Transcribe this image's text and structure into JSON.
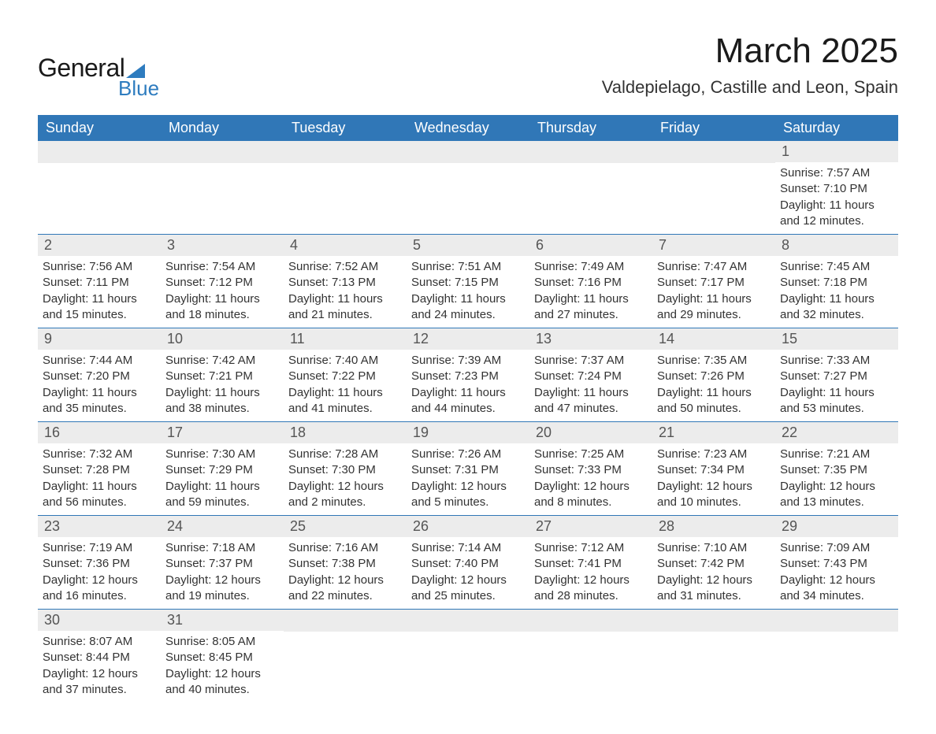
{
  "logo": {
    "text1": "General",
    "text2": "Blue"
  },
  "title": "March 2025",
  "location": "Valdepielago, Castille and Leon, Spain",
  "colors": {
    "header_bg": "#3077b7",
    "header_text": "#ffffff",
    "daynum_bg": "#ececec",
    "cell_border": "#3077b7",
    "logo_accent": "#2e7cbf",
    "body_text": "#333333"
  },
  "dayHeaders": [
    "Sunday",
    "Monday",
    "Tuesday",
    "Wednesday",
    "Thursday",
    "Friday",
    "Saturday"
  ],
  "weeks": [
    [
      null,
      null,
      null,
      null,
      null,
      null,
      {
        "n": "1",
        "sr": "Sunrise: 7:57 AM",
        "ss": "Sunset: 7:10 PM",
        "d1": "Daylight: 11 hours",
        "d2": "and 12 minutes."
      }
    ],
    [
      {
        "n": "2",
        "sr": "Sunrise: 7:56 AM",
        "ss": "Sunset: 7:11 PM",
        "d1": "Daylight: 11 hours",
        "d2": "and 15 minutes."
      },
      {
        "n": "3",
        "sr": "Sunrise: 7:54 AM",
        "ss": "Sunset: 7:12 PM",
        "d1": "Daylight: 11 hours",
        "d2": "and 18 minutes."
      },
      {
        "n": "4",
        "sr": "Sunrise: 7:52 AM",
        "ss": "Sunset: 7:13 PM",
        "d1": "Daylight: 11 hours",
        "d2": "and 21 minutes."
      },
      {
        "n": "5",
        "sr": "Sunrise: 7:51 AM",
        "ss": "Sunset: 7:15 PM",
        "d1": "Daylight: 11 hours",
        "d2": "and 24 minutes."
      },
      {
        "n": "6",
        "sr": "Sunrise: 7:49 AM",
        "ss": "Sunset: 7:16 PM",
        "d1": "Daylight: 11 hours",
        "d2": "and 27 minutes."
      },
      {
        "n": "7",
        "sr": "Sunrise: 7:47 AM",
        "ss": "Sunset: 7:17 PM",
        "d1": "Daylight: 11 hours",
        "d2": "and 29 minutes."
      },
      {
        "n": "8",
        "sr": "Sunrise: 7:45 AM",
        "ss": "Sunset: 7:18 PM",
        "d1": "Daylight: 11 hours",
        "d2": "and 32 minutes."
      }
    ],
    [
      {
        "n": "9",
        "sr": "Sunrise: 7:44 AM",
        "ss": "Sunset: 7:20 PM",
        "d1": "Daylight: 11 hours",
        "d2": "and 35 minutes."
      },
      {
        "n": "10",
        "sr": "Sunrise: 7:42 AM",
        "ss": "Sunset: 7:21 PM",
        "d1": "Daylight: 11 hours",
        "d2": "and 38 minutes."
      },
      {
        "n": "11",
        "sr": "Sunrise: 7:40 AM",
        "ss": "Sunset: 7:22 PM",
        "d1": "Daylight: 11 hours",
        "d2": "and 41 minutes."
      },
      {
        "n": "12",
        "sr": "Sunrise: 7:39 AM",
        "ss": "Sunset: 7:23 PM",
        "d1": "Daylight: 11 hours",
        "d2": "and 44 minutes."
      },
      {
        "n": "13",
        "sr": "Sunrise: 7:37 AM",
        "ss": "Sunset: 7:24 PM",
        "d1": "Daylight: 11 hours",
        "d2": "and 47 minutes."
      },
      {
        "n": "14",
        "sr": "Sunrise: 7:35 AM",
        "ss": "Sunset: 7:26 PM",
        "d1": "Daylight: 11 hours",
        "d2": "and 50 minutes."
      },
      {
        "n": "15",
        "sr": "Sunrise: 7:33 AM",
        "ss": "Sunset: 7:27 PM",
        "d1": "Daylight: 11 hours",
        "d2": "and 53 minutes."
      }
    ],
    [
      {
        "n": "16",
        "sr": "Sunrise: 7:32 AM",
        "ss": "Sunset: 7:28 PM",
        "d1": "Daylight: 11 hours",
        "d2": "and 56 minutes."
      },
      {
        "n": "17",
        "sr": "Sunrise: 7:30 AM",
        "ss": "Sunset: 7:29 PM",
        "d1": "Daylight: 11 hours",
        "d2": "and 59 minutes."
      },
      {
        "n": "18",
        "sr": "Sunrise: 7:28 AM",
        "ss": "Sunset: 7:30 PM",
        "d1": "Daylight: 12 hours",
        "d2": "and 2 minutes."
      },
      {
        "n": "19",
        "sr": "Sunrise: 7:26 AM",
        "ss": "Sunset: 7:31 PM",
        "d1": "Daylight: 12 hours",
        "d2": "and 5 minutes."
      },
      {
        "n": "20",
        "sr": "Sunrise: 7:25 AM",
        "ss": "Sunset: 7:33 PM",
        "d1": "Daylight: 12 hours",
        "d2": "and 8 minutes."
      },
      {
        "n": "21",
        "sr": "Sunrise: 7:23 AM",
        "ss": "Sunset: 7:34 PM",
        "d1": "Daylight: 12 hours",
        "d2": "and 10 minutes."
      },
      {
        "n": "22",
        "sr": "Sunrise: 7:21 AM",
        "ss": "Sunset: 7:35 PM",
        "d1": "Daylight: 12 hours",
        "d2": "and 13 minutes."
      }
    ],
    [
      {
        "n": "23",
        "sr": "Sunrise: 7:19 AM",
        "ss": "Sunset: 7:36 PM",
        "d1": "Daylight: 12 hours",
        "d2": "and 16 minutes."
      },
      {
        "n": "24",
        "sr": "Sunrise: 7:18 AM",
        "ss": "Sunset: 7:37 PM",
        "d1": "Daylight: 12 hours",
        "d2": "and 19 minutes."
      },
      {
        "n": "25",
        "sr": "Sunrise: 7:16 AM",
        "ss": "Sunset: 7:38 PM",
        "d1": "Daylight: 12 hours",
        "d2": "and 22 minutes."
      },
      {
        "n": "26",
        "sr": "Sunrise: 7:14 AM",
        "ss": "Sunset: 7:40 PM",
        "d1": "Daylight: 12 hours",
        "d2": "and 25 minutes."
      },
      {
        "n": "27",
        "sr": "Sunrise: 7:12 AM",
        "ss": "Sunset: 7:41 PM",
        "d1": "Daylight: 12 hours",
        "d2": "and 28 minutes."
      },
      {
        "n": "28",
        "sr": "Sunrise: 7:10 AM",
        "ss": "Sunset: 7:42 PM",
        "d1": "Daylight: 12 hours",
        "d2": "and 31 minutes."
      },
      {
        "n": "29",
        "sr": "Sunrise: 7:09 AM",
        "ss": "Sunset: 7:43 PM",
        "d1": "Daylight: 12 hours",
        "d2": "and 34 minutes."
      }
    ],
    [
      {
        "n": "30",
        "sr": "Sunrise: 8:07 AM",
        "ss": "Sunset: 8:44 PM",
        "d1": "Daylight: 12 hours",
        "d2": "and 37 minutes."
      },
      {
        "n": "31",
        "sr": "Sunrise: 8:05 AM",
        "ss": "Sunset: 8:45 PM",
        "d1": "Daylight: 12 hours",
        "d2": "and 40 minutes."
      },
      null,
      null,
      null,
      null,
      null
    ]
  ]
}
